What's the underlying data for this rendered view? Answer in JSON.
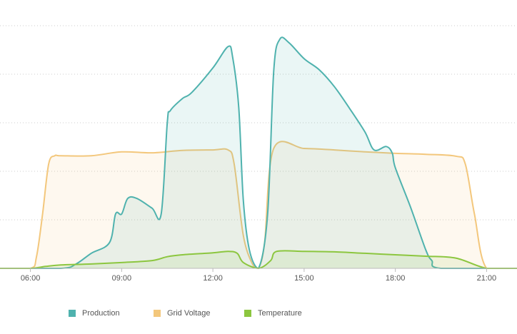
{
  "chart_data": {
    "type": "area",
    "xlim": [
      5,
      22
    ],
    "xticks": [
      {
        "value": 6,
        "label": "06:00"
      },
      {
        "value": 9,
        "label": "09:00"
      },
      {
        "value": 12,
        "label": "12:00"
      },
      {
        "value": 15,
        "label": "15:00"
      },
      {
        "value": 18,
        "label": "18:00"
      },
      {
        "value": 21,
        "label": "21:00"
      }
    ],
    "ylim": [
      0,
      5.5
    ],
    "yticks": [
      1,
      2,
      3,
      4,
      5
    ],
    "grid": true,
    "legend": "bottom",
    "series": [
      {
        "name": "Grid Voltage",
        "color": "#f3c77c",
        "x": [
          5,
          6,
          6.2,
          6.4,
          6.6,
          6.8,
          7,
          8,
          9,
          10,
          11,
          12,
          12.5,
          12.7,
          13,
          13.3,
          13.5,
          13.7,
          14,
          15,
          16,
          17,
          18,
          19,
          20,
          20.3,
          20.6,
          21,
          22
        ],
        "values": [
          0,
          0,
          0.24,
          1.12,
          2.15,
          2.32,
          2.32,
          2.32,
          2.4,
          2.38,
          2.43,
          2.44,
          2.44,
          2.15,
          0.68,
          0.09,
          0,
          0.53,
          2.47,
          2.47,
          2.44,
          2.4,
          2.37,
          2.35,
          2.31,
          2.15,
          1.12,
          0,
          0
        ]
      },
      {
        "name": "Production",
        "color": "#4fb2ae",
        "x": [
          5,
          7,
          7.5,
          8,
          8.6,
          8.8,
          9,
          9.2,
          9.5,
          10,
          10.3,
          10.5,
          10.6,
          11,
          11.3,
          12,
          12.5,
          12.65,
          12.85,
          13,
          13.2,
          13.5,
          13.8,
          14,
          14.2,
          14.5,
          15,
          15.5,
          16,
          16.5,
          17,
          17.3,
          17.7,
          17.9,
          18,
          18.5,
          19,
          19.2,
          19.5,
          22
        ],
        "values": [
          0,
          0,
          0.09,
          0.31,
          0.53,
          1.12,
          1.12,
          1.44,
          1.44,
          1.24,
          1.12,
          3.0,
          3.25,
          3.5,
          3.62,
          4.13,
          4.57,
          4.35,
          3.32,
          1.41,
          0.38,
          0,
          1.12,
          4.06,
          4.72,
          4.65,
          4.32,
          4.09,
          3.74,
          3.29,
          2.81,
          2.44,
          2.51,
          2.37,
          2.07,
          1.26,
          0.38,
          0.16,
          0,
          0
        ]
      },
      {
        "name": "Temperature",
        "color": "#8cc63f",
        "x": [
          5,
          6,
          6.5,
          7,
          8,
          9,
          10,
          10.5,
          11,
          12,
          12.5,
          12.8,
          13,
          13.5,
          13.9,
          14.1,
          15,
          16,
          17,
          18,
          19,
          20,
          21,
          22
        ],
        "values": [
          0,
          0,
          0.04,
          0.07,
          0.09,
          0.12,
          0.16,
          0.24,
          0.28,
          0.32,
          0.35,
          0.31,
          0.12,
          0,
          0.16,
          0.35,
          0.35,
          0.34,
          0.31,
          0.28,
          0.25,
          0.21,
          0,
          0
        ]
      }
    ]
  }
}
